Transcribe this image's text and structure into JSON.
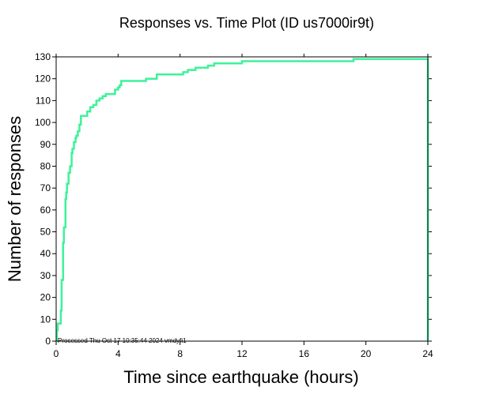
{
  "chart_data": {
    "type": "line",
    "title": "Responses vs. Time Plot (ID us7000ir9t)",
    "xlabel": "Time since earthquake (hours)",
    "ylabel": "Number of responses",
    "xlim": [
      0,
      24
    ],
    "ylim": [
      0,
      130
    ],
    "xticks": [
      0,
      4,
      8,
      12,
      16,
      20,
      24
    ],
    "yticks": [
      0,
      10,
      20,
      30,
      40,
      50,
      60,
      70,
      80,
      90,
      100,
      110,
      120,
      130
    ],
    "grid": false,
    "legend": "none",
    "step": true,
    "line_color": "#3ef29a",
    "series": [
      {
        "name": "",
        "x": [
          0.0,
          0.05,
          0.1,
          0.3,
          0.35,
          0.45,
          0.5,
          0.6,
          0.65,
          0.7,
          0.8,
          0.9,
          1.0,
          1.05,
          1.15,
          1.25,
          1.3,
          1.4,
          1.5,
          1.6,
          1.7,
          1.8,
          1.9,
          2.0,
          2.2,
          2.4,
          2.6,
          2.8,
          3.0,
          3.2,
          3.4,
          3.8,
          4.0,
          4.1,
          4.2,
          4.4,
          5.8,
          6.5,
          8.2,
          8.5,
          9.0,
          9.8,
          10.2,
          12.0,
          19.2,
          24.0,
          24.0
        ],
        "y": [
          0,
          5,
          8,
          14,
          28,
          45,
          52,
          65,
          68,
          72,
          77,
          80,
          86,
          88,
          91,
          93,
          94,
          96,
          99,
          103,
          103,
          103,
          103,
          105,
          107,
          108,
          110,
          111,
          112,
          113,
          113,
          115,
          116,
          117,
          119,
          119,
          120,
          122,
          123,
          124,
          125,
          126,
          127,
          128,
          129,
          129,
          0
        ]
      }
    ]
  },
  "footnote": "Processed Thu Oct 17 10:35:44 2024 vmdyfi1"
}
